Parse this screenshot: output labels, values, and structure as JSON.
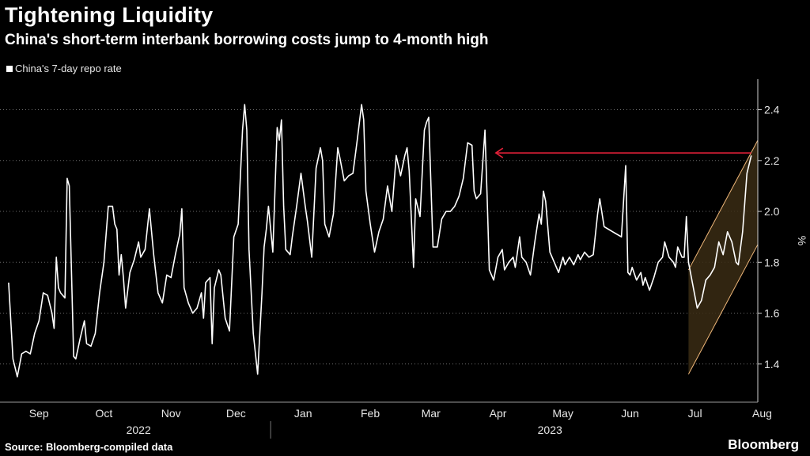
{
  "chart_data": {
    "type": "line",
    "title": "Tightening Liquidity",
    "subtitle": "China's short-term interbank borrowing costs jump to 4-month high",
    "legend": [
      {
        "label": "China's 7-day repo rate",
        "color": "#ffffff"
      }
    ],
    "ylabel": "%",
    "ylim": [
      1.25,
      2.52
    ],
    "yticks": [
      1.4,
      1.6,
      1.8,
      2.0,
      2.2,
      2.4
    ],
    "x_range_days": [
      -4,
      346
    ],
    "month_ticks": [
      {
        "label": "Sep",
        "day": 14
      },
      {
        "label": "Oct",
        "day": 44
      },
      {
        "label": "Nov",
        "day": 75
      },
      {
        "label": "Dec",
        "day": 105
      },
      {
        "label": "Jan",
        "day": 136
      },
      {
        "label": "Feb",
        "day": 167
      },
      {
        "label": "Mar",
        "day": 195
      },
      {
        "label": "Apr",
        "day": 226
      },
      {
        "label": "May",
        "day": 256
      },
      {
        "label": "Jun",
        "day": 287
      },
      {
        "label": "Jul",
        "day": 317
      },
      {
        "label": "Aug",
        "day": 348
      }
    ],
    "year_labels": [
      {
        "label": "2022",
        "day": 60
      },
      {
        "label": "2023",
        "day": 250
      }
    ],
    "year_divider_day": 121,
    "series": [
      {
        "name": "China's 7-day repo rate",
        "points": [
          [
            0,
            1.72
          ],
          [
            2,
            1.42
          ],
          [
            4,
            1.35
          ],
          [
            6,
            1.44
          ],
          [
            8,
            1.45
          ],
          [
            10,
            1.44
          ],
          [
            12,
            1.52
          ],
          [
            14,
            1.57
          ],
          [
            16,
            1.68
          ],
          [
            18,
            1.67
          ],
          [
            20,
            1.6
          ],
          [
            21,
            1.54
          ],
          [
            22,
            1.82
          ],
          [
            23,
            1.7
          ],
          [
            24,
            1.68
          ],
          [
            26,
            1.66
          ],
          [
            27,
            2.13
          ],
          [
            28,
            2.1
          ],
          [
            30,
            1.43
          ],
          [
            31,
            1.42
          ],
          [
            33,
            1.5
          ],
          [
            35,
            1.57
          ],
          [
            36,
            1.48
          ],
          [
            38,
            1.47
          ],
          [
            40,
            1.52
          ],
          [
            42,
            1.68
          ],
          [
            44,
            1.8
          ],
          [
            46,
            2.02
          ],
          [
            48,
            2.02
          ],
          [
            49,
            1.95
          ],
          [
            50,
            1.93
          ],
          [
            51,
            1.75
          ],
          [
            52,
            1.83
          ],
          [
            53,
            1.74
          ],
          [
            54,
            1.62
          ],
          [
            56,
            1.76
          ],
          [
            58,
            1.81
          ],
          [
            60,
            1.88
          ],
          [
            61,
            1.82
          ],
          [
            63,
            1.85
          ],
          [
            65,
            2.01
          ],
          [
            67,
            1.83
          ],
          [
            69,
            1.68
          ],
          [
            71,
            1.64
          ],
          [
            73,
            1.75
          ],
          [
            75,
            1.74
          ],
          [
            77,
            1.83
          ],
          [
            79,
            1.91
          ],
          [
            80,
            2.01
          ],
          [
            81,
            1.7
          ],
          [
            83,
            1.64
          ],
          [
            85,
            1.6
          ],
          [
            87,
            1.62
          ],
          [
            89,
            1.68
          ],
          [
            90,
            1.58
          ],
          [
            91,
            1.72
          ],
          [
            93,
            1.74
          ],
          [
            94,
            1.48
          ],
          [
            95,
            1.7
          ],
          [
            97,
            1.77
          ],
          [
            98,
            1.75
          ],
          [
            100,
            1.58
          ],
          [
            102,
            1.53
          ],
          [
            104,
            1.9
          ],
          [
            106,
            1.95
          ],
          [
            108,
            2.32
          ],
          [
            109,
            2.42
          ],
          [
            110,
            2.32
          ],
          [
            111,
            1.85
          ],
          [
            113,
            1.52
          ],
          [
            115,
            1.36
          ],
          [
            117,
            1.68
          ],
          [
            118,
            1.86
          ],
          [
            119,
            1.93
          ],
          [
            120,
            2.02
          ],
          [
            122,
            1.84
          ],
          [
            124,
            2.33
          ],
          [
            125,
            2.28
          ],
          [
            126,
            2.36
          ],
          [
            127,
            2.02
          ],
          [
            128,
            1.85
          ],
          [
            130,
            1.83
          ],
          [
            131,
            1.9
          ],
          [
            133,
            2.02
          ],
          [
            135,
            2.15
          ],
          [
            137,
            2.02
          ],
          [
            138,
            1.96
          ],
          [
            140,
            1.82
          ],
          [
            142,
            2.17
          ],
          [
            144,
            2.25
          ],
          [
            145,
            2.2
          ],
          [
            146,
            1.95
          ],
          [
            148,
            1.9
          ],
          [
            150,
            1.99
          ],
          [
            152,
            2.25
          ],
          [
            153,
            2.21
          ],
          [
            155,
            2.12
          ],
          [
            157,
            2.14
          ],
          [
            159,
            2.15
          ],
          [
            161,
            2.28
          ],
          [
            163,
            2.42
          ],
          [
            164,
            2.36
          ],
          [
            165,
            2.08
          ],
          [
            167,
            1.95
          ],
          [
            169,
            1.84
          ],
          [
            171,
            1.92
          ],
          [
            173,
            1.97
          ],
          [
            175,
            2.1
          ],
          [
            177,
            2.0
          ],
          [
            179,
            2.22
          ],
          [
            181,
            2.14
          ],
          [
            183,
            2.22
          ],
          [
            184,
            2.25
          ],
          [
            185,
            2.16
          ],
          [
            187,
            1.78
          ],
          [
            188,
            2.05
          ],
          [
            190,
            1.98
          ],
          [
            192,
            2.32
          ],
          [
            193,
            2.35
          ],
          [
            194,
            2.37
          ],
          [
            196,
            1.86
          ],
          [
            198,
            1.86
          ],
          [
            200,
            1.97
          ],
          [
            202,
            2.0
          ],
          [
            204,
            2.0
          ],
          [
            206,
            2.02
          ],
          [
            208,
            2.06
          ],
          [
            210,
            2.13
          ],
          [
            212,
            2.27
          ],
          [
            214,
            2.26
          ],
          [
            215,
            2.08
          ],
          [
            216,
            2.05
          ],
          [
            218,
            2.07
          ],
          [
            220,
            2.32
          ],
          [
            221,
            2.05
          ],
          [
            222,
            1.77
          ],
          [
            224,
            1.73
          ],
          [
            226,
            1.82
          ],
          [
            228,
            1.85
          ],
          [
            229,
            1.77
          ],
          [
            231,
            1.8
          ],
          [
            233,
            1.82
          ],
          [
            234,
            1.78
          ],
          [
            236,
            1.9
          ],
          [
            237,
            1.82
          ],
          [
            239,
            1.8
          ],
          [
            241,
            1.75
          ],
          [
            243,
            1.88
          ],
          [
            245,
            1.99
          ],
          [
            246,
            1.95
          ],
          [
            247,
            2.08
          ],
          [
            248,
            2.04
          ],
          [
            250,
            1.84
          ],
          [
            252,
            1.8
          ],
          [
            254,
            1.76
          ],
          [
            256,
            1.82
          ],
          [
            257,
            1.79
          ],
          [
            259,
            1.82
          ],
          [
            261,
            1.79
          ],
          [
            263,
            1.83
          ],
          [
            264,
            1.81
          ],
          [
            266,
            1.84
          ],
          [
            268,
            1.82
          ],
          [
            270,
            1.83
          ],
          [
            272,
            1.99
          ],
          [
            273,
            2.05
          ],
          [
            275,
            1.94
          ],
          [
            277,
            1.93
          ],
          [
            279,
            1.92
          ],
          [
            281,
            1.91
          ],
          [
            283,
            1.9
          ],
          [
            285,
            2.18
          ],
          [
            286,
            1.76
          ],
          [
            287,
            1.75
          ],
          [
            288,
            1.78
          ],
          [
            290,
            1.73
          ],
          [
            292,
            1.76
          ],
          [
            293,
            1.71
          ],
          [
            294,
            1.74
          ],
          [
            296,
            1.69
          ],
          [
            298,
            1.74
          ],
          [
            300,
            1.8
          ],
          [
            302,
            1.82
          ],
          [
            303,
            1.88
          ],
          [
            305,
            1.82
          ],
          [
            307,
            1.8
          ],
          [
            308,
            1.78
          ],
          [
            309,
            1.86
          ],
          [
            311,
            1.82
          ],
          [
            312,
            1.82
          ],
          [
            313,
            1.98
          ],
          [
            314,
            1.8
          ],
          [
            316,
            1.71
          ],
          [
            318,
            1.62
          ],
          [
            320,
            1.65
          ],
          [
            322,
            1.73
          ],
          [
            324,
            1.75
          ],
          [
            326,
            1.78
          ],
          [
            328,
            1.88
          ],
          [
            330,
            1.83
          ],
          [
            332,
            1.92
          ],
          [
            334,
            1.88
          ],
          [
            336,
            1.8
          ],
          [
            337,
            1.79
          ],
          [
            339,
            1.92
          ],
          [
            341,
            2.15
          ],
          [
            343,
            2.22
          ]
        ]
      }
    ],
    "annotations": {
      "reference_arrow": {
        "value": 2.23,
        "from_day": 343,
        "to_day": 225,
        "color": "#e8213a"
      },
      "channel": {
        "upper": [
          [
            314,
            1.77
          ],
          [
            346,
            2.28
          ]
        ],
        "lower": [
          [
            314,
            1.36
          ],
          [
            346,
            1.87
          ]
        ],
        "fill": "#3a2b14",
        "stroke": "#f0b87a"
      }
    }
  },
  "footer": {
    "source": "Source: Bloomberg-compiled data",
    "brand": "Bloomberg"
  }
}
